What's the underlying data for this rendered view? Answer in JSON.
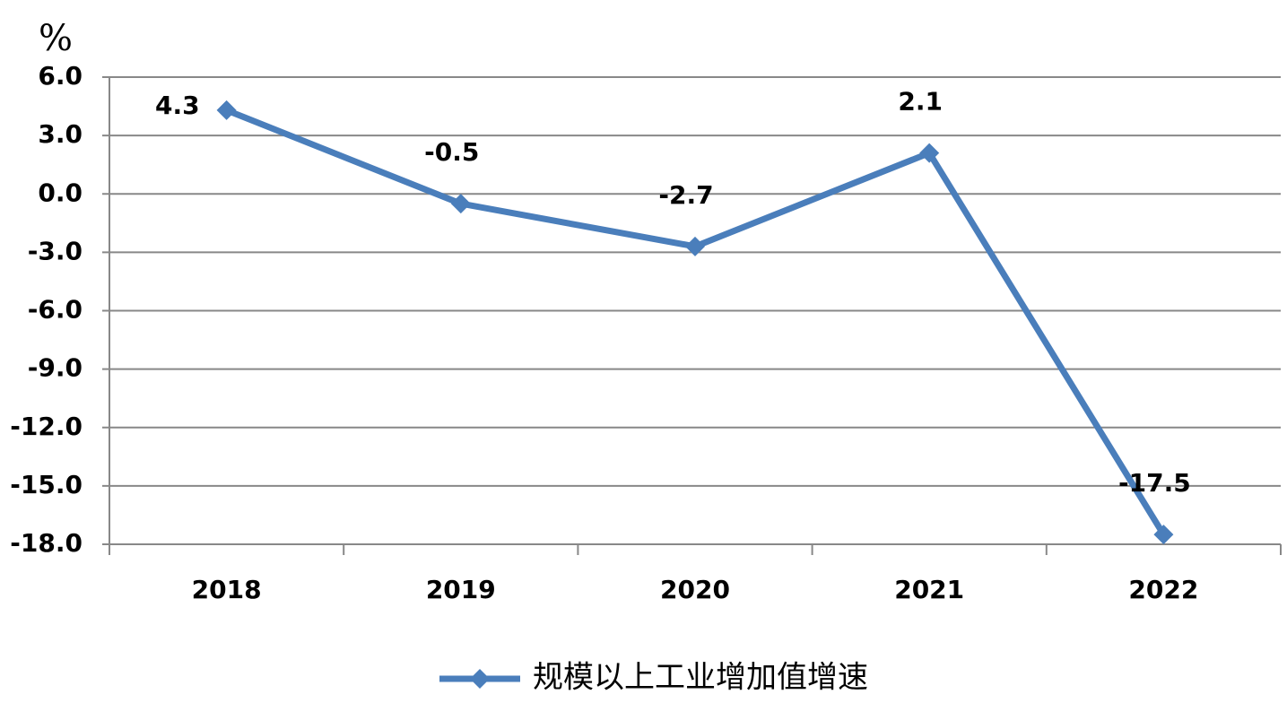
{
  "chart_data": {
    "type": "line",
    "unit_label": "%",
    "categories": [
      "2018",
      "2019",
      "2020",
      "2021",
      "2022"
    ],
    "series": [
      {
        "name": "规模以上工业增加值增速",
        "color": "#4a7ebb",
        "values": [
          4.3,
          -0.5,
          -2.7,
          2.1,
          -17.5
        ]
      }
    ],
    "ylim": [
      -18,
      6
    ],
    "yticks": [
      {
        "value": 6,
        "label": "6.0"
      },
      {
        "value": 3,
        "label": "3.0"
      },
      {
        "value": 0,
        "label": "0.0"
      },
      {
        "value": -3,
        "label": "-3.0"
      },
      {
        "value": -6,
        "label": "-6.0"
      },
      {
        "value": -9,
        "label": "-9.0"
      },
      {
        "value": -12,
        "label": "-12.0"
      },
      {
        "value": -15,
        "label": "-15.0"
      },
      {
        "value": -18,
        "label": "-18.0"
      }
    ],
    "grid": true,
    "legend": "bottom"
  }
}
